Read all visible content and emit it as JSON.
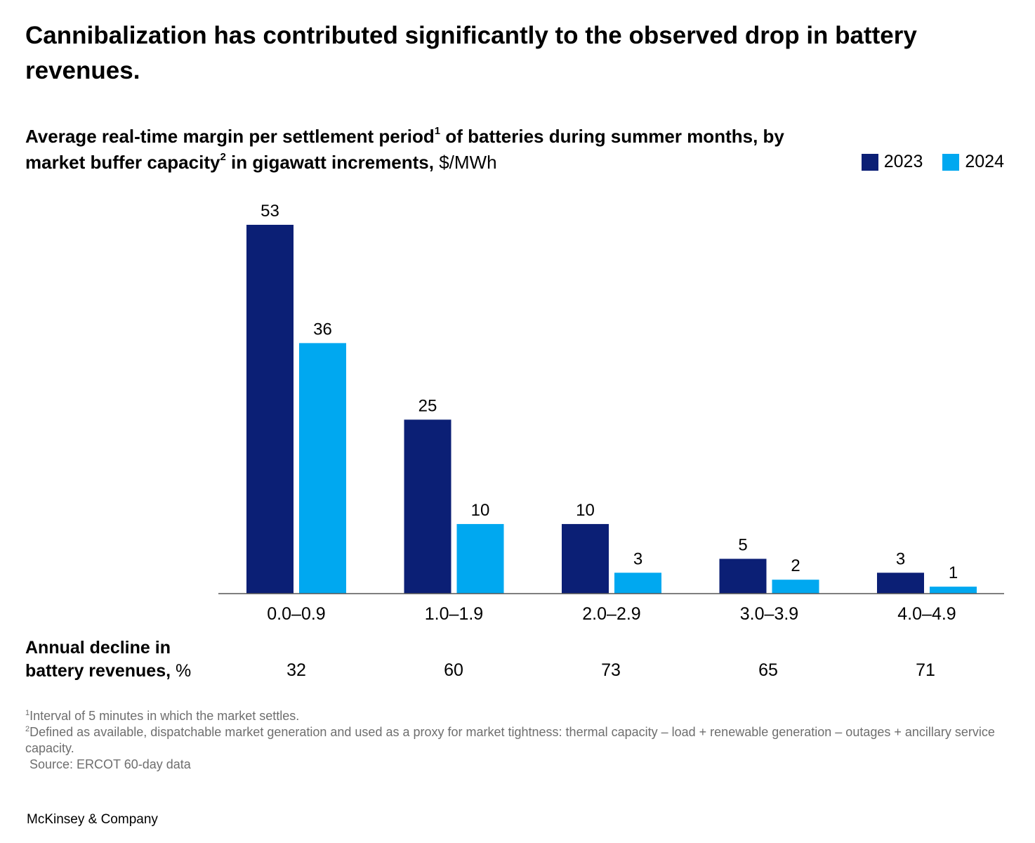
{
  "title": "Cannibalization has contributed significantly to the observed drop in battery revenues.",
  "subtitle": {
    "part1": "Average real-time margin per settlement period",
    "sup1": "1",
    "part2": " of batteries during summer months, by market buffer capacity",
    "sup2": "2",
    "part3": " in gigawatt increments,",
    "unit": " $/MWh"
  },
  "legend": [
    {
      "label": "2023",
      "color": "#0b1f75"
    },
    {
      "label": "2024",
      "color": "#00a8f0"
    }
  ],
  "chart_data": {
    "type": "bar",
    "title": "Average real-time margin per settlement period of batteries during summer months, by market buffer capacity in gigawatt increments, $/MWh",
    "categories": [
      "0.0–0.9",
      "1.0–1.9",
      "2.0–2.9",
      "3.0–3.9",
      "4.0–4.9"
    ],
    "series": [
      {
        "name": "2023",
        "color": "#0b1f75",
        "values": [
          53,
          25,
          10,
          5,
          3
        ]
      },
      {
        "name": "2024",
        "color": "#00a8f0",
        "values": [
          36,
          10,
          3,
          2,
          1
        ]
      }
    ],
    "xlabel": "",
    "ylabel": "",
    "ylim": [
      0,
      53
    ],
    "grid": false,
    "legend_position": "top-right"
  },
  "decline": {
    "label_line1": "Annual decline in",
    "label_line2": "battery revenues,",
    "unit": " %",
    "values": [
      "32",
      "60",
      "73",
      "65",
      "71"
    ]
  },
  "footnotes": {
    "fn1_mark": "1",
    "fn1": "Interval of 5 minutes in which the market settles.",
    "fn2_mark": "2",
    "fn2": "Defined as available, dispatchable market generation and used as a proxy for market tightness: thermal capacity – load + renewable generation – outages + ancillary service capacity.",
    "source": "Source: ERCOT 60-day data"
  },
  "brand": "McKinsey & Company"
}
